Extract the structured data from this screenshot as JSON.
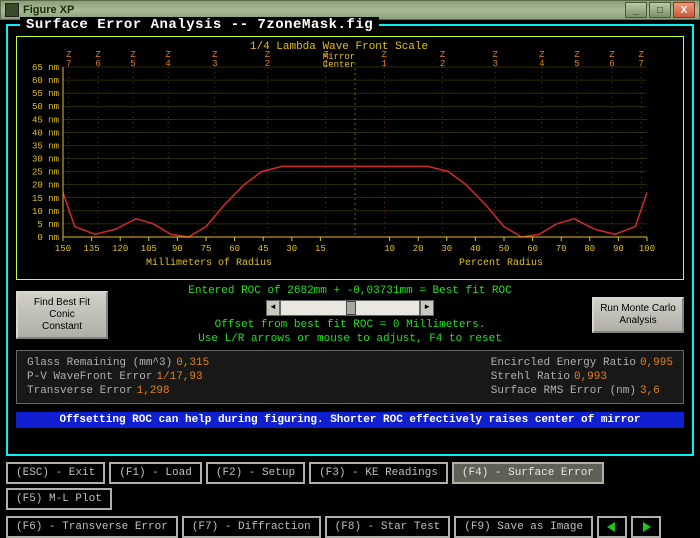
{
  "window": {
    "title": "Figure XP"
  },
  "frame": {
    "title": "Surface Error Analysis -- 7zoneMask.fig"
  },
  "chart": {
    "title": "1/4 Lambda Wave Front Scale",
    "center_label_top": "Mirror",
    "center_label_bot": "Center",
    "xlabel_left": "Millimeters of Radius",
    "xlabel_right": "Percent Radius",
    "colors": {
      "frame": "#c0ff40",
      "grid": "#555500",
      "curve": "#d02a2a",
      "zone": "#e0801a",
      "text": "#e0c020",
      "bg": "#000000"
    },
    "y": {
      "min": 0,
      "max": 65,
      "step": 5,
      "unit": "nm"
    },
    "x_left": {
      "ticks": [
        150,
        135,
        120,
        105,
        90,
        75,
        60,
        45,
        30,
        15
      ]
    },
    "x_right": {
      "ticks": [
        10,
        20,
        30,
        40,
        50,
        60,
        70,
        80,
        90,
        100
      ]
    },
    "zones_left": [
      "Z\n7",
      "Z\n6",
      "Z\n5",
      "Z\n4",
      "Z\n3",
      "Z\n2",
      "Z\n1"
    ],
    "zones_right": [
      "Z\n1",
      "Z\n2",
      "Z\n3",
      "Z\n4",
      "Z\n5",
      "Z\n6",
      "Z\n7"
    ],
    "curve": [
      [
        0,
        17
      ],
      [
        4,
        4
      ],
      [
        11,
        1
      ],
      [
        18,
        3
      ],
      [
        25,
        7
      ],
      [
        31,
        5
      ],
      [
        37,
        1
      ],
      [
        43,
        0
      ],
      [
        49,
        4
      ],
      [
        55,
        12
      ],
      [
        62,
        20
      ],
      [
        68,
        25
      ],
      [
        75,
        27
      ],
      [
        82,
        27
      ],
      [
        88,
        27
      ],
      [
        95,
        27
      ],
      [
        100,
        27
      ],
      [
        105,
        27
      ],
      [
        112,
        27
      ],
      [
        118,
        27
      ],
      [
        125,
        27
      ],
      [
        132,
        25
      ],
      [
        138,
        20
      ],
      [
        145,
        12
      ],
      [
        151,
        4
      ],
      [
        157,
        0
      ],
      [
        163,
        1
      ],
      [
        169,
        5
      ],
      [
        175,
        7
      ],
      [
        182,
        3
      ],
      [
        189,
        1
      ],
      [
        196,
        4
      ],
      [
        200,
        17
      ]
    ],
    "curve_xrange": 200,
    "curve_ymax": 65
  },
  "mid": {
    "btn_left_l1": "Find Best Fit Conic",
    "btn_left_l2": "Constant",
    "btn_right_l1": "Run Monte Carlo",
    "btn_right_l2": "Analysis",
    "line1": "Entered ROC of 2682mm + -0,03731mm = Best fit ROC",
    "line2": "Offset from best fit ROC = 0 Millimeters.",
    "line3": "Use L/R arrows or mouse to adjust, F4 to reset"
  },
  "stats": {
    "left": [
      {
        "label": "Glass Remaining (mm^3)",
        "value": "0,315"
      },
      {
        "label": "P-V WaveFront Error",
        "value": "1/17,93"
      },
      {
        "label": "Transverse Error",
        "value": "1,298"
      }
    ],
    "right": [
      {
        "label": "Encircled Energy Ratio",
        "value": "0,995"
      },
      {
        "label": "Strehl Ratio",
        "value": "0,993"
      },
      {
        "label": "Surface RMS Error (nm)",
        "value": "3,6"
      }
    ]
  },
  "hint": "Offsetting ROC can help during figuring. Shorter ROC effectively raises center of mirror",
  "fkeys": {
    "row1": [
      {
        "k": "esc",
        "label": "(ESC) - Exit"
      },
      {
        "k": "f1",
        "label": "(F1) - Load"
      },
      {
        "k": "f2",
        "label": "(F2) - Setup"
      },
      {
        "k": "f3",
        "label": "(F3) - KE Readings"
      },
      {
        "k": "f4",
        "label": "(F4) - Surface Error",
        "active": true
      },
      {
        "k": "f5",
        "label": "(F5) M-L Plot"
      }
    ],
    "row2": [
      {
        "k": "f6",
        "label": "(F6) - Transverse Error"
      },
      {
        "k": "f7",
        "label": "(F7) - Diffraction"
      },
      {
        "k": "f8",
        "label": "(F8) - Star Test"
      },
      {
        "k": "f9",
        "label": "(F9) Save as Image"
      }
    ]
  }
}
